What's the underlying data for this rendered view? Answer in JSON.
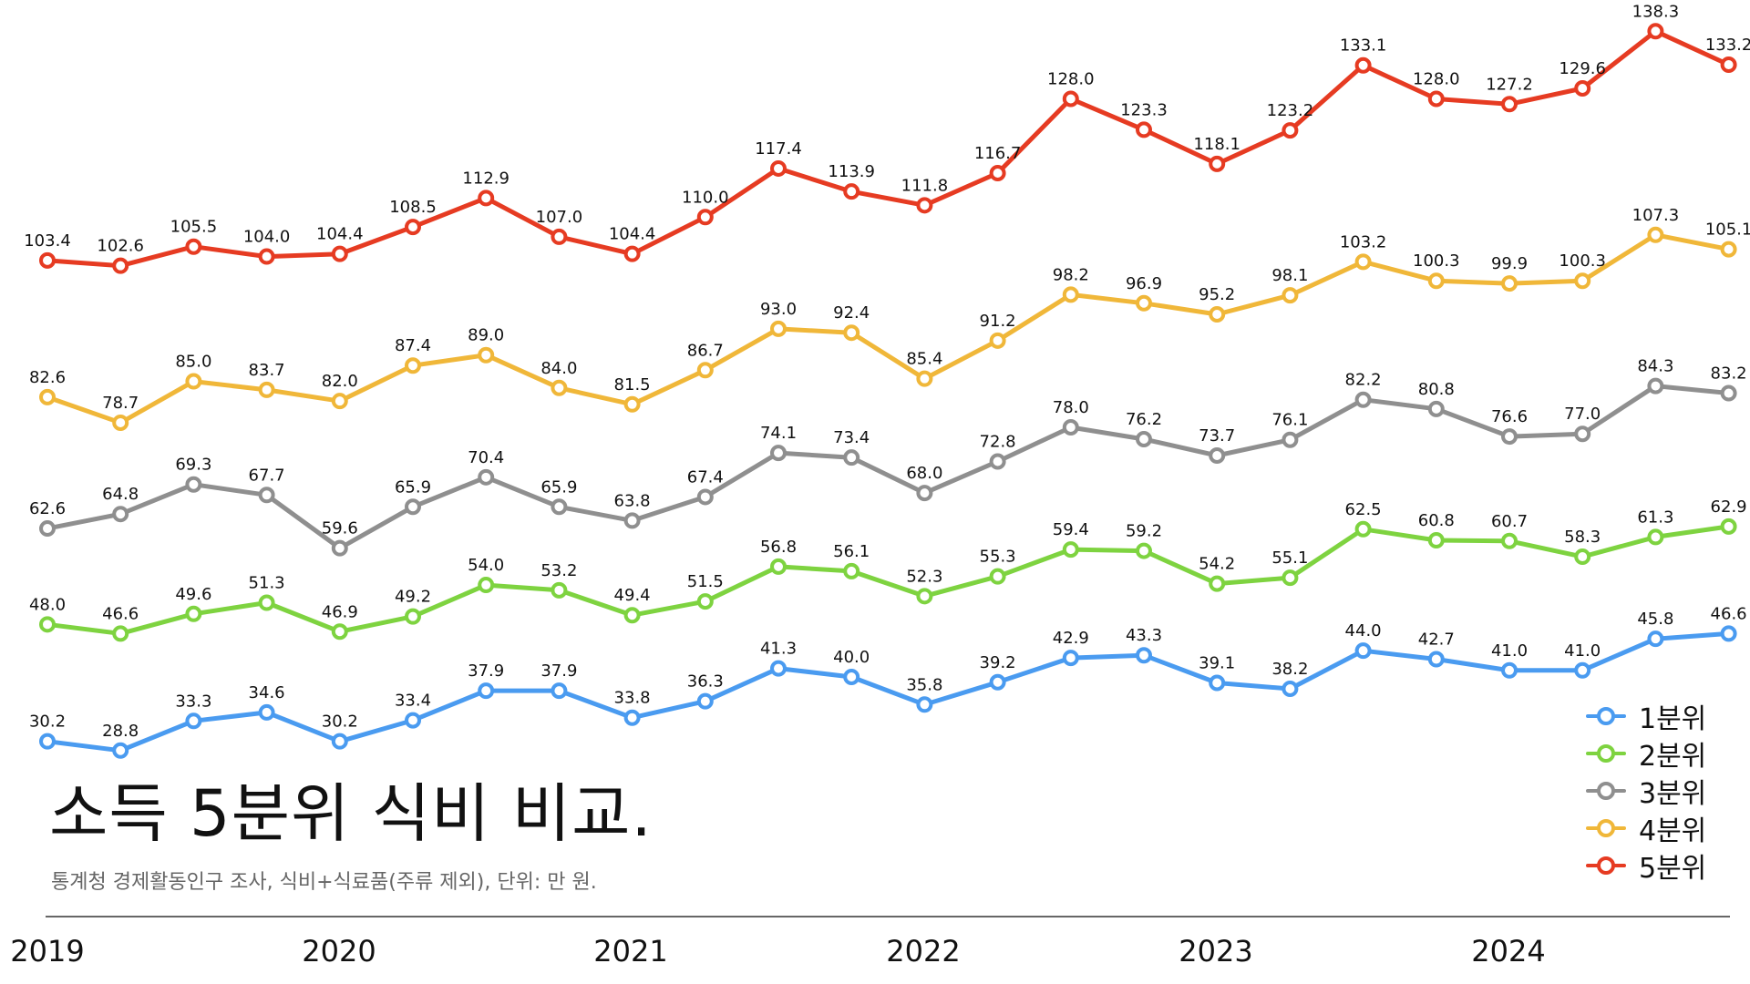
{
  "title": "소득 5분위 식비 비교.",
  "subtitle": "통계청 경제활동인구 조사, 식비+식료품(주류 제외), 단위: 만 원.",
  "chart_data": {
    "type": "line",
    "title": "소득 5분위 식비 비교.",
    "subtitle": "통계청 경제활동인구 조사, 식비+식료품(주류 제외), 단위: 만 원.",
    "x_labels": [
      "2019",
      "2020",
      "2021",
      "2022",
      "2023",
      "2024"
    ],
    "points_per_year": 4,
    "x": [
      "2019-1",
      "2019-2",
      "2019-3",
      "2019-4",
      "2020-1",
      "2020-2",
      "2020-3",
      "2020-4",
      "2021-1",
      "2021-2",
      "2021-3",
      "2021-4",
      "2022-1",
      "2022-2",
      "2022-3",
      "2022-4",
      "2023-1",
      "2023-2",
      "2023-3",
      "2023-4",
      "2024-1",
      "2024-2",
      "2024-3",
      "2024-4"
    ],
    "ylim": [
      20,
      140
    ],
    "grid": false,
    "legend_position": "bottom-right",
    "series": [
      {
        "name": "1분위",
        "color": "#4A9BF0",
        "values": [
          30.2,
          28.8,
          33.3,
          34.6,
          30.2,
          33.4,
          37.9,
          37.9,
          33.8,
          36.3,
          41.3,
          40.0,
          35.8,
          39.2,
          42.9,
          43.3,
          39.1,
          38.2,
          44.0,
          42.7,
          41.0,
          41.0,
          45.8,
          46.6
        ]
      },
      {
        "name": "2분위",
        "color": "#7ED340",
        "values": [
          48.0,
          46.6,
          49.6,
          51.3,
          46.9,
          49.2,
          54.0,
          53.2,
          49.4,
          51.5,
          56.8,
          56.1,
          52.3,
          55.3,
          59.4,
          59.2,
          54.2,
          55.1,
          62.5,
          60.8,
          60.7,
          58.3,
          61.3,
          62.9
        ]
      },
      {
        "name": "3분위",
        "color": "#8F8F8F",
        "values": [
          62.6,
          64.8,
          69.3,
          67.7,
          59.6,
          65.9,
          70.4,
          65.9,
          63.8,
          67.4,
          74.1,
          73.4,
          68.0,
          72.8,
          78.0,
          76.2,
          73.7,
          76.1,
          82.2,
          80.8,
          76.6,
          77.0,
          84.3,
          83.2
        ]
      },
      {
        "name": "4분위",
        "color": "#F0B739",
        "values": [
          82.6,
          78.7,
          85.0,
          83.7,
          82.0,
          87.4,
          89.0,
          84.0,
          81.5,
          86.7,
          93.0,
          92.4,
          85.4,
          91.2,
          98.2,
          96.9,
          95.2,
          98.1,
          103.2,
          100.3,
          99.9,
          100.3,
          107.3,
          105.1
        ]
      },
      {
        "name": "5분위",
        "color": "#E63B22",
        "values": [
          103.4,
          102.6,
          105.5,
          104.0,
          104.4,
          108.5,
          112.9,
          107.0,
          104.4,
          110.0,
          117.4,
          113.9,
          111.8,
          116.7,
          128.0,
          123.3,
          118.1,
          123.2,
          133.1,
          128.0,
          127.2,
          129.6,
          138.3,
          133.2
        ]
      }
    ]
  }
}
